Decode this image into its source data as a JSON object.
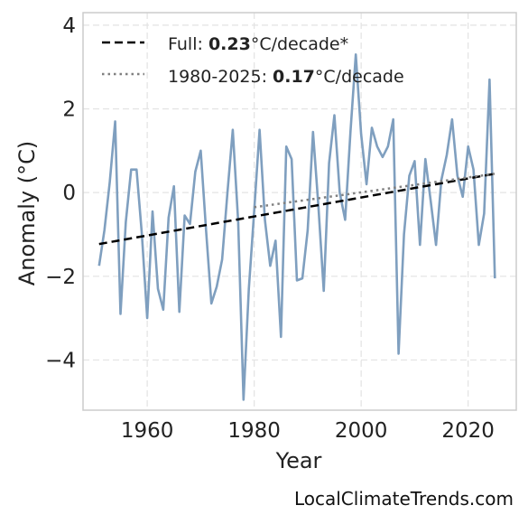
{
  "chart_data": {
    "type": "line",
    "xlabel": "Year",
    "ylabel": "Anomaly (°C)",
    "xlim": [
      1948,
      2029
    ],
    "ylim": [
      -5.2,
      4.3
    ],
    "xticks": [
      1960,
      1980,
      2000,
      2020
    ],
    "yticks": [
      -4,
      -2,
      0,
      2,
      4
    ],
    "grid": true,
    "legend_placement": "top-left",
    "colors": {
      "series": "#7f9fbf",
      "full_trend": "#000000",
      "recent_trend": "#808080"
    },
    "series": [
      {
        "x": [
          1951,
          1952,
          1953,
          1954,
          1955,
          1956,
          1957,
          1958,
          1959,
          1960,
          1961,
          1962,
          1963,
          1964,
          1965,
          1966,
          1967,
          1968,
          1969,
          1970,
          1971,
          1972,
          1973,
          1974,
          1975,
          1976,
          1977,
          1978,
          1979,
          1980,
          1981,
          1982,
          1983,
          1984,
          1985,
          1986,
          1987,
          1988,
          1989,
          1990,
          1991,
          1992,
          1993,
          1994,
          1995,
          1996,
          1997,
          1998,
          1999,
          2000,
          2001,
          2002,
          2003,
          2004,
          2005,
          2006,
          2007,
          2008,
          2009,
          2010,
          2011,
          2012,
          2013,
          2014,
          2015,
          2016,
          2017,
          2018,
          2019,
          2020,
          2021,
          2022,
          2023,
          2024,
          2025
        ],
        "values": [
          -1.75,
          -0.9,
          0.25,
          1.7,
          -2.9,
          -0.7,
          0.55,
          0.55,
          -1.0,
          -3.0,
          -0.45,
          -2.3,
          -2.8,
          -0.6,
          0.15,
          -2.85,
          -0.55,
          -0.75,
          0.5,
          1.0,
          -0.9,
          -2.65,
          -2.25,
          -1.6,
          0.0,
          1.5,
          -0.7,
          -4.95,
          -2.3,
          -0.45,
          1.5,
          -0.65,
          -1.75,
          -1.15,
          -3.45,
          1.1,
          0.8,
          -2.1,
          -2.05,
          -0.9,
          1.45,
          -0.3,
          -2.35,
          0.7,
          1.85,
          0.0,
          -0.65,
          1.45,
          3.3,
          1.4,
          0.2,
          1.55,
          1.1,
          0.85,
          1.1,
          1.75,
          -3.85,
          -1.0,
          0.4,
          0.75,
          -1.25,
          0.8,
          -0.2,
          -1.25,
          0.3,
          0.9,
          1.75,
          0.4,
          -0.1,
          1.1,
          0.55,
          -1.25,
          -0.5,
          2.7,
          -2.05
        ]
      }
    ],
    "trend_lines": [
      {
        "label_prefix": "Full: ",
        "label_value": "0.23",
        "label_suffix": "°C/decade*",
        "x": [
          1951,
          2025
        ],
        "y": [
          -1.23,
          0.45
        ],
        "style": "dashed"
      },
      {
        "label_prefix": "1980-2025: ",
        "label_value": "0.17",
        "label_suffix": "°C/decade",
        "x": [
          1980,
          2025
        ],
        "y": [
          -0.35,
          0.45
        ],
        "style": "dotted"
      }
    ]
  },
  "source": "LocalClimateTrends.com"
}
